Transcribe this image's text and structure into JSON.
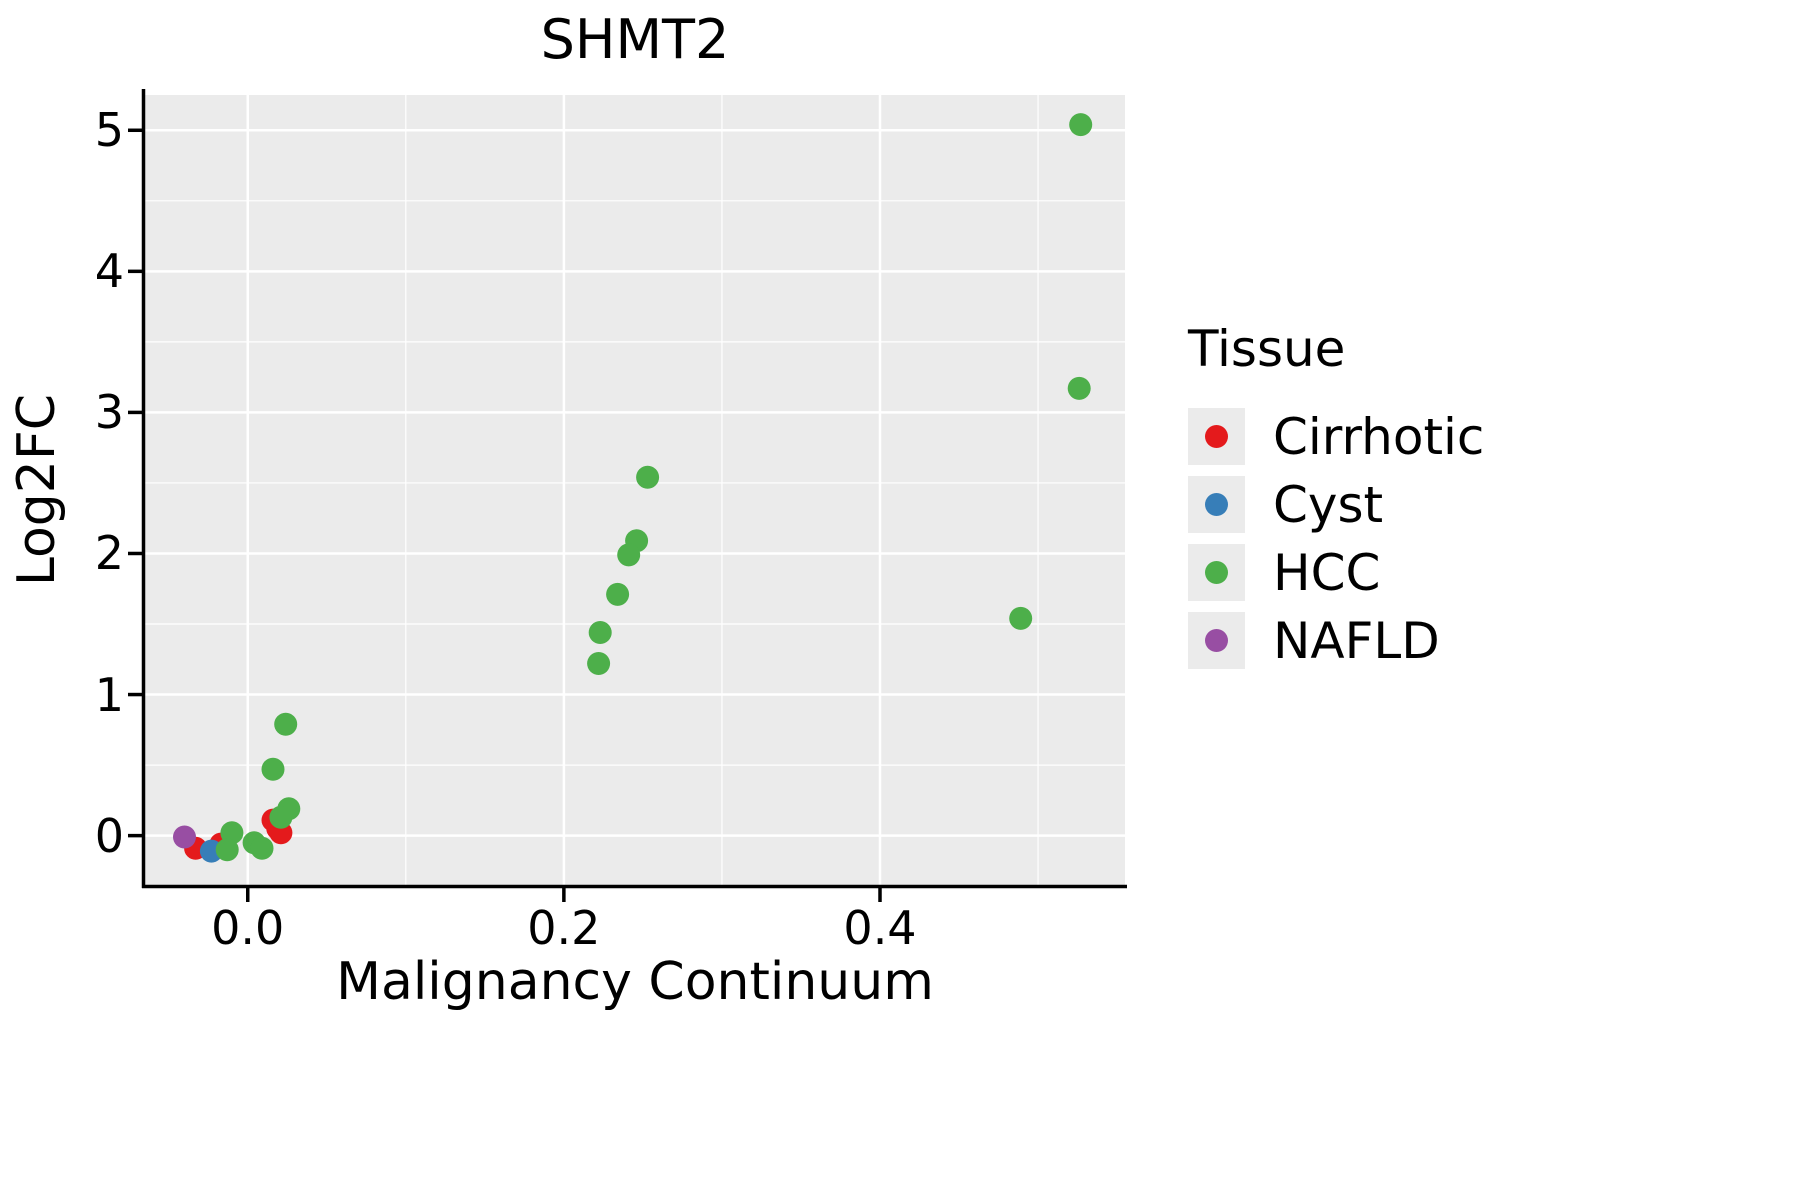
{
  "chart_data": {
    "type": "scatter",
    "title": "SHMT2",
    "xlabel": "Malignancy Continuum",
    "ylabel": "Log2FC",
    "legend_title": "Tissue",
    "legend_position": "right",
    "grid": true,
    "panel_bg": "#EBEBEB",
    "grid_color": "#FFFFFF",
    "axis_color": "#000000",
    "xlim": [
      -0.065,
      0.555
    ],
    "ylim": [
      -0.35,
      5.25
    ],
    "xtick_values": [
      0.0,
      0.2,
      0.4
    ],
    "xtick_labels": [
      "0.0",
      "0.2",
      "0.4"
    ],
    "ytick_values": [
      0,
      1,
      2,
      3,
      4,
      5
    ],
    "ytick_labels": [
      "0",
      "1",
      "2",
      "3",
      "4",
      "5"
    ],
    "xticks_minor": [
      0.1,
      0.3,
      0.5
    ],
    "yticks_minor": [
      0.5,
      1.5,
      2.5,
      3.5,
      4.5
    ],
    "series": [
      {
        "name": "Cirrhotic",
        "color": "#E41A1C",
        "points": [
          [
            -0.033,
            -0.09
          ],
          [
            -0.017,
            -0.06
          ],
          [
            0.016,
            0.11
          ],
          [
            0.019,
            0.05
          ],
          [
            0.021,
            0.02
          ]
        ]
      },
      {
        "name": "Cyst",
        "color": "#377EB8",
        "points": [
          [
            -0.023,
            -0.11
          ]
        ]
      },
      {
        "name": "HCC",
        "color": "#4DAF4A",
        "points": [
          [
            0.527,
            5.04
          ],
          [
            0.526,
            3.17
          ],
          [
            0.253,
            2.54
          ],
          [
            0.246,
            2.09
          ],
          [
            0.241,
            1.99
          ],
          [
            0.234,
            1.71
          ],
          [
            0.223,
            1.44
          ],
          [
            0.222,
            1.22
          ],
          [
            0.489,
            1.54
          ],
          [
            0.024,
            0.79
          ],
          [
            0.016,
            0.47
          ],
          [
            0.026,
            0.19
          ],
          [
            0.021,
            0.13
          ],
          [
            -0.01,
            0.02
          ],
          [
            0.004,
            -0.05
          ],
          [
            0.009,
            -0.09
          ],
          [
            -0.013,
            -0.1
          ]
        ]
      },
      {
        "name": "NAFLD",
        "color": "#984EA3",
        "points": [
          [
            -0.04,
            -0.01
          ]
        ]
      }
    ]
  }
}
